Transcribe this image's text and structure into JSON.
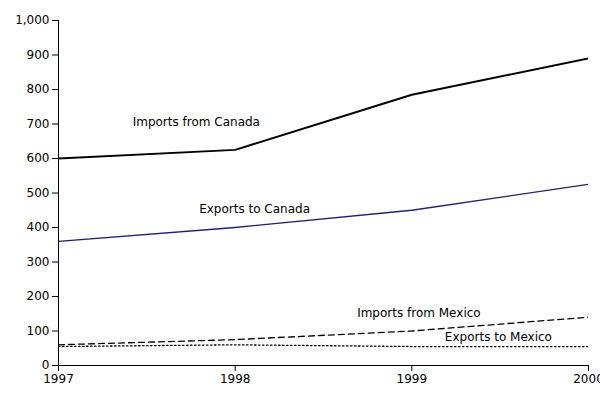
{
  "chart_data": {
    "type": "line",
    "x": [
      1997,
      1998,
      1999,
      2000
    ],
    "xlim": [
      1997,
      2000
    ],
    "xticks": [
      1997,
      1998,
      1999,
      2000
    ],
    "ylim": [
      0,
      1000
    ],
    "yticks": [
      0,
      100,
      200,
      300,
      400,
      500,
      600,
      700,
      800,
      900,
      {
        "value": 1000,
        "label": "1,000"
      }
    ],
    "grid": false,
    "series": [
      {
        "name": "Imports from Canada",
        "color": "#000000",
        "line_style": "solid",
        "values": [
          600,
          625,
          785,
          890
        ]
      },
      {
        "name": "Exports to Canada",
        "color": "#1f1f7a",
        "line_style": "solid",
        "values": [
          360,
          400,
          450,
          525
        ]
      },
      {
        "name": "Imports from Mexico",
        "color": "#000000",
        "line_style": "dashed",
        "values": [
          60,
          75,
          100,
          140
        ]
      },
      {
        "name": "Exports to Mexico",
        "color": "#000000",
        "line_style": "dotted",
        "values": [
          55,
          60,
          55,
          55
        ]
      }
    ]
  }
}
